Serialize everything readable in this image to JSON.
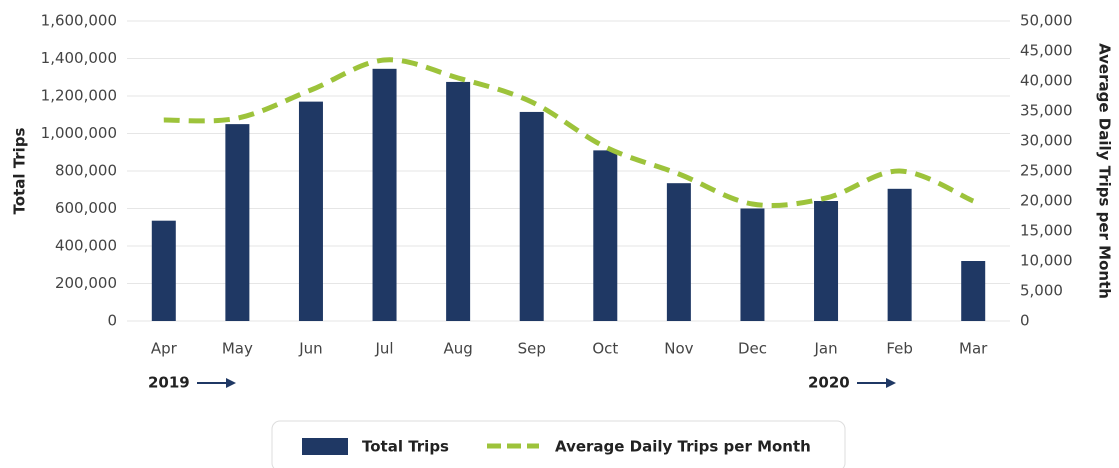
{
  "chart_data": {
    "type": "bar_line",
    "categories": [
      "Apr",
      "May",
      "Jun",
      "Jul",
      "Aug",
      "Sep",
      "Oct",
      "Nov",
      "Dec",
      "Jan",
      "Feb",
      "Mar"
    ],
    "series": [
      {
        "name": "Total Trips",
        "color": "#1f3864",
        "type": "bar",
        "values": [
          535000,
          1050000,
          1170000,
          1345000,
          1275000,
          1115000,
          910000,
          735000,
          600000,
          640000,
          705000,
          320000
        ]
      },
      {
        "name": "Average Daily Trips per Month",
        "color": "#9dc33b",
        "type": "line",
        "axis": "y2",
        "values": [
          33500,
          33800,
          38500,
          43500,
          40500,
          36500,
          29000,
          24500,
          19500,
          20500,
          25000,
          20000
        ]
      }
    ],
    "ylabel": "Total Trips",
    "y2label": "Average Daily Trips per Month",
    "ylim": [
      0,
      1600000
    ],
    "yticks": [
      0,
      {
        "value": 200000,
        "label": "200,000"
      },
      {
        "value": 400000,
        "label": "400,000"
      },
      {
        "value": 600000,
        "label": "600,000"
      },
      {
        "value": 800000,
        "label": "800,000"
      },
      {
        "value": 1000000,
        "label": "1,000,000"
      },
      {
        "value": 1200000,
        "label": "1,200,000"
      },
      {
        "value": 1400000,
        "label": "1,400,000"
      },
      {
        "value": 1600000,
        "label": "1,600,000"
      }
    ],
    "y2lim": [
      0,
      50000
    ],
    "y2ticks": [
      0,
      {
        "value": 5000,
        "label": "5,000"
      },
      {
        "value": 10000,
        "label": "10,000"
      },
      {
        "value": 15000,
        "label": "15,000"
      },
      {
        "value": 20000,
        "label": "20,000"
      },
      {
        "value": 25000,
        "label": "25,000"
      },
      {
        "value": 30000,
        "label": "30,000"
      },
      {
        "value": 35000,
        "label": "35,000"
      },
      {
        "value": 40000,
        "label": "40,000"
      },
      {
        "value": 45000,
        "label": "45,000"
      },
      {
        "value": 50000,
        "label": "50,000"
      }
    ],
    "annotations": [
      "2019",
      "2020"
    ],
    "grid": true,
    "legend": "bottom"
  }
}
